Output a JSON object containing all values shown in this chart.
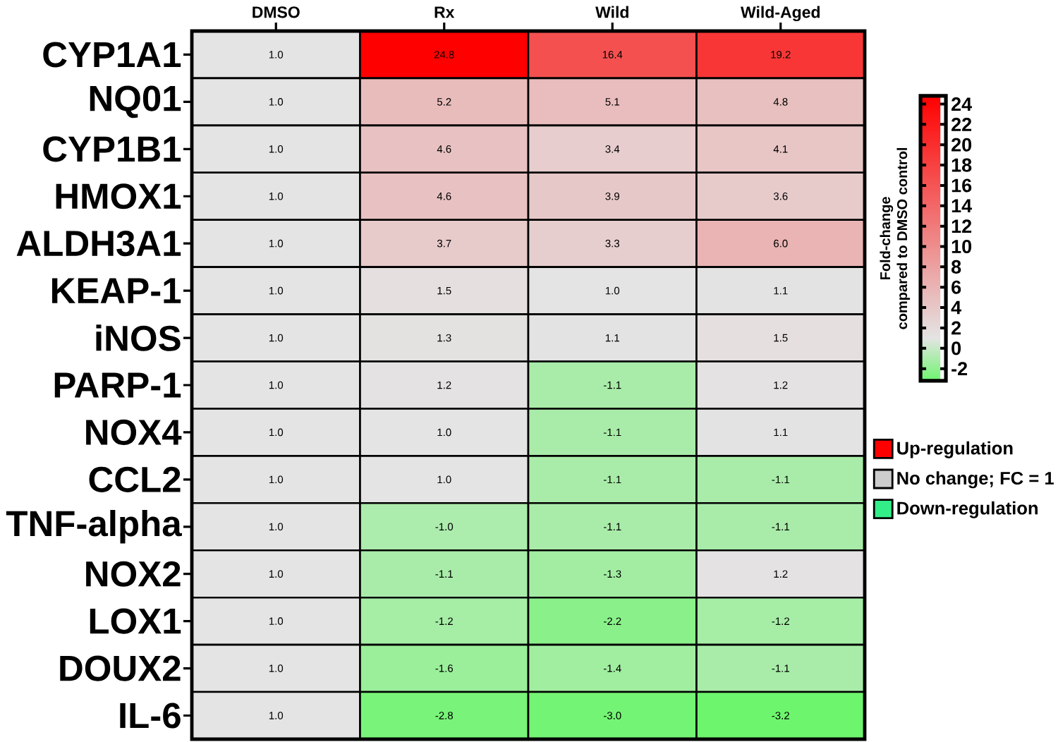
{
  "chart_data": {
    "type": "heatmap",
    "categories": [
      "DMSO",
      "Rx",
      "Wild",
      "Wild-Aged"
    ],
    "y_categories": [
      "CYP1A1",
      "NQ01",
      "CYP1B1",
      "HMOX1",
      "ALDH3A1",
      "KEAP-1",
      "iNOS",
      "PARP-1",
      "NOX4",
      "CCL2",
      "TNF-alpha",
      "NOX2",
      "LOX1",
      "DOUX2",
      "IL-6"
    ],
    "cells": [
      [
        1.0,
        24.8,
        16.4,
        19.2
      ],
      [
        1.0,
        5.2,
        5.1,
        4.8
      ],
      [
        1.0,
        4.6,
        3.4,
        4.1
      ],
      [
        1.0,
        4.6,
        3.9,
        3.6
      ],
      [
        1.0,
        3.7,
        3.3,
        6.0
      ],
      [
        1.0,
        1.5,
        1.0,
        1.1
      ],
      [
        1.0,
        1.3,
        1.1,
        1.5
      ],
      [
        1.0,
        1.2,
        -1.1,
        1.2
      ],
      [
        1.0,
        1.0,
        -1.1,
        1.1
      ],
      [
        1.0,
        1.0,
        -1.1,
        -1.1
      ],
      [
        1.0,
        -1.0,
        -1.1,
        -1.1
      ],
      [
        1.0,
        -1.1,
        -1.3,
        1.2
      ],
      [
        1.0,
        -1.2,
        -2.2,
        -1.2
      ],
      [
        1.0,
        -1.6,
        -1.4,
        -1.1
      ],
      [
        1.0,
        -2.8,
        -3.0,
        -3.2
      ]
    ],
    "cell_labels": [
      [
        "1.0",
        "24.8",
        "16.4",
        "19.2"
      ],
      [
        "1.0",
        "5.2",
        "5.1",
        "4.8"
      ],
      [
        "1.0",
        "4.6",
        "3.4",
        "4.1"
      ],
      [
        "1.0",
        "4.6",
        "3.9",
        "3.6"
      ],
      [
        "1.0",
        "3.7",
        "3.3",
        "6.0"
      ],
      [
        "1.0",
        "1.5",
        "1.0",
        "1.1"
      ],
      [
        "1.0",
        "1.3",
        "1.1",
        "1.5"
      ],
      [
        "1.0",
        "1.2",
        "-1.1",
        "1.2"
      ],
      [
        "1.0",
        "1.0",
        "-1.1",
        "1.1"
      ],
      [
        "1.0",
        "1.0",
        "-1.1",
        "-1.1"
      ],
      [
        "1.0",
        "-1.0",
        "-1.1",
        "-1.1"
      ],
      [
        "1.0",
        "-1.1",
        "-1.3",
        "1.2"
      ],
      [
        "1.0",
        "-1.2",
        "-2.2",
        "-1.2"
      ],
      [
        "1.0",
        "-1.6",
        "-1.4",
        "-1.1"
      ],
      [
        "1.0",
        "-2.8",
        "-3.0",
        "-3.2"
      ]
    ],
    "clim": [
      -3.2,
      24.8
    ],
    "cticks": [
      -2,
      0,
      2,
      4,
      6,
      8,
      10,
      12,
      14,
      16,
      18,
      20,
      22,
      24
    ],
    "clabel": "Fold-change\ncompared to DMSO control",
    "series": [
      {
        "name": "Up-regulation",
        "color": "#ff0000",
        "values": [
          null,
          null,
          null,
          null
        ]
      },
      {
        "name": "No change; FC = 1",
        "color": "#cccccc",
        "values": [
          null,
          null,
          null,
          null
        ]
      },
      {
        "name": "Down-regulation",
        "color": "#33ee88",
        "values": [
          null,
          null,
          null,
          null
        ]
      }
    ],
    "legend": "right"
  }
}
